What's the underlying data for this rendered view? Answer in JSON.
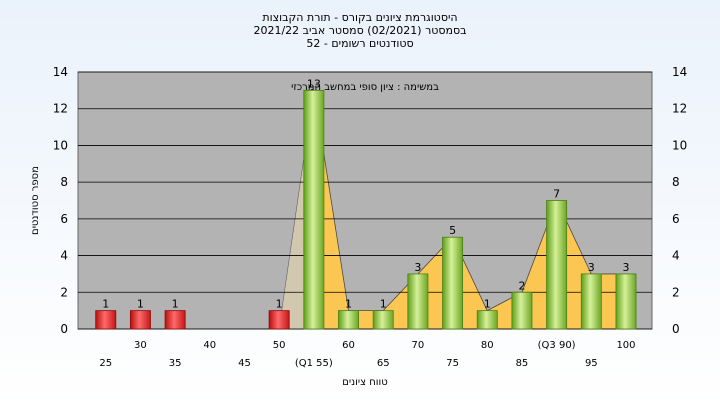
{
  "chart_data": {
    "type": "bar",
    "title_lines": [
      "היסטוגרמת ציונים בקורס - תורת הקבוצות",
      "בסמסטר  (02/2021)  סמסטר אביב 2021/22",
      "סטודנטים רשומים - 52"
    ],
    "subtitle": "במשימה : ציון סופי במחשב המרכזי",
    "xlabel": "טווח ציונים",
    "ylabel": "מספר סטודנטים",
    "ylim": [
      0,
      14
    ],
    "yticks": [
      0,
      2,
      4,
      6,
      8,
      10,
      12,
      14
    ],
    "grid": true,
    "categories": [
      "25",
      "30",
      "35",
      "40",
      "45",
      "50",
      "(Q1 55)",
      "60",
      "65",
      "70",
      "75",
      "80",
      "85",
      "(Q3 90)",
      "95",
      "100"
    ],
    "values": [
      1,
      1,
      1,
      0,
      0,
      1,
      13,
      1,
      1,
      3,
      5,
      1,
      2,
      7,
      3,
      3
    ],
    "data_labels": [
      "1",
      "1",
      "1",
      "",
      "",
      "1",
      "13",
      "1",
      "1",
      "3",
      "5",
      "1",
      "2",
      "7",
      "3",
      "3"
    ],
    "bar_colors": [
      "#e02020",
      "#e02020",
      "#e02020",
      "#e02020",
      "#e02020",
      "#e02020",
      "#8cc63f",
      "#8cc63f",
      "#8cc63f",
      "#8cc63f",
      "#8cc63f",
      "#8cc63f",
      "#8cc63f",
      "#8cc63f",
      "#8cc63f",
      "#8cc63f"
    ],
    "shaded_area_color": "#ffc94d",
    "plot_background": "#b3b3b3"
  }
}
